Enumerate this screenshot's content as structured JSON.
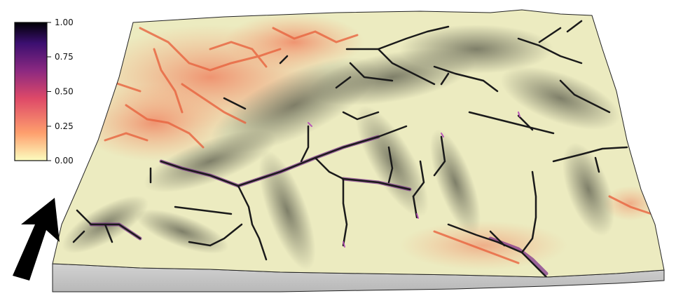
{
  "colorbar": {
    "ticks": [
      "1.00",
      "0.75",
      "0.50",
      "0.25",
      "0.00"
    ],
    "colors": [
      "#fcfdbf",
      "#fe9f6d",
      "#de4968",
      "#8c2981",
      "#3b0f70",
      "#000004"
    ]
  },
  "north_arrow": {
    "icon": "north-arrow-icon"
  },
  "terrain": {
    "base_color": "#ecebc0",
    "shadow_color": "#6f7060",
    "side_color": "#c4c4c4",
    "channel_color": "#1a1a1a"
  }
}
